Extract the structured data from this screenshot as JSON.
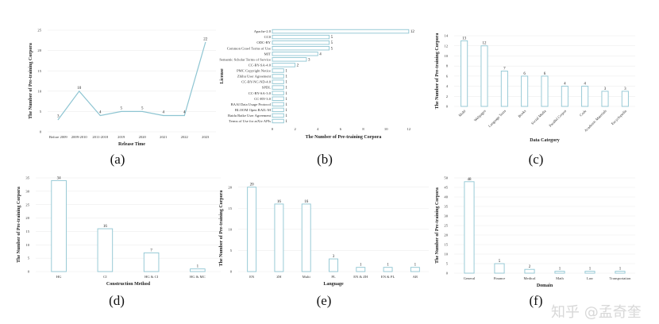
{
  "chart_data": [
    {
      "type": "line",
      "caption": "(a)",
      "xlabel": "Release Time",
      "ylabel": "The Number of Pre-training Corpora",
      "categories": [
        "Before 2009",
        "2009-2010",
        "2011-2018",
        "2019",
        "2020",
        "2021",
        "2022",
        "2023"
      ],
      "values": [
        3,
        10,
        4,
        5,
        5,
        4,
        4,
        22
      ],
      "ylim": [
        0,
        25
      ],
      "yticks": [
        "0",
        "5",
        "10",
        "15",
        "20",
        "25"
      ],
      "grid": true
    },
    {
      "type": "bar",
      "orientation": "horizontal",
      "caption": "(b)",
      "xlabel": "The Number of Pre-training Corpora",
      "ylabel": "License",
      "categories": [
        "Apache-2.0",
        "CC0",
        "ODC-BY",
        "Common Crawl Terms of Use",
        "MIT",
        "Semantic Scholar Terms of Service",
        "CC-BY-SA-4.0",
        "PMC Copyright Notice",
        "Zhihu User Agreement",
        "CC-BY-NC-ND-4.0",
        "SPDL",
        "CC-BY-SA-3.0",
        "CC-BY-3.0",
        "BAAI Data Usage Protocol",
        "BLOOM Open RAIL-M",
        "Baidu Baike User Agreement",
        "Terms of Use for arXiv APIs"
      ],
      "values": [
        12,
        5,
        5,
        5,
        4,
        3,
        2,
        1,
        1,
        1,
        1,
        1,
        1,
        1,
        1,
        1,
        1
      ],
      "xlim": [
        0,
        12.5
      ],
      "xticks": [
        "0",
        "2",
        "4",
        "6",
        "8",
        "10",
        "12"
      ],
      "grid": false
    },
    {
      "type": "bar",
      "caption": "(c)",
      "xlabel": "Data Category",
      "ylabel": "The Number of Pre-training Corpora",
      "categories": [
        "Multi",
        "Webpages",
        "Language Texts",
        "Books",
        "Social Media",
        "Parallel Corpus",
        "Code",
        "Academic Materials",
        "Encyclopedia"
      ],
      "values": [
        13,
        12,
        7,
        6,
        6,
        4,
        4,
        3,
        3
      ],
      "ylim": [
        0,
        14
      ],
      "yticks": [
        "0",
        "2",
        "4",
        "6",
        "8",
        "10",
        "12",
        "14"
      ],
      "grid": true
    },
    {
      "type": "bar",
      "caption": "(d)",
      "xlabel": "Construction Method",
      "ylabel": "The Number of Pre-training Corpora",
      "categories": [
        "HG",
        "CI",
        "HG & CI",
        "HG & MC"
      ],
      "values": [
        34,
        16,
        7,
        1
      ],
      "ylim": [
        0,
        35
      ],
      "yticks": [
        "0",
        "5",
        "10",
        "15",
        "20",
        "25",
        "30",
        "35"
      ],
      "grid": true
    },
    {
      "type": "bar",
      "caption": "(e)",
      "xlabel": "Language",
      "ylabel": "The Number of Pre-training Corpora",
      "categories": [
        "EN",
        "ZH",
        "Multi",
        "PL",
        "EN & ZH",
        "EN & PL",
        "AR"
      ],
      "values": [
        20,
        16,
        16,
        3,
        1,
        1,
        1
      ],
      "ylim": [
        0,
        20.5
      ],
      "yticks": [
        "0",
        "5",
        "10",
        "15",
        "20"
      ],
      "grid": true
    },
    {
      "type": "bar",
      "caption": "(f)",
      "xlabel": "Domain",
      "ylabel": "The Number of Pre-training Corpora",
      "categories": [
        "General",
        "Finance",
        "Medical",
        "Math",
        "Law",
        "Transportation"
      ],
      "values": [
        48,
        5,
        2,
        1,
        1,
        1
      ],
      "ylim": [
        0,
        50
      ],
      "yticks": [
        "0",
        "5",
        "10",
        "15",
        "20",
        "25",
        "30",
        "35",
        "40",
        "45",
        "50"
      ],
      "grid": true
    }
  ],
  "colors": {
    "mark": "#8ec5d2",
    "grid": "#eeeeee",
    "text": "#222222"
  },
  "watermark": "知乎 @孟奇奎"
}
